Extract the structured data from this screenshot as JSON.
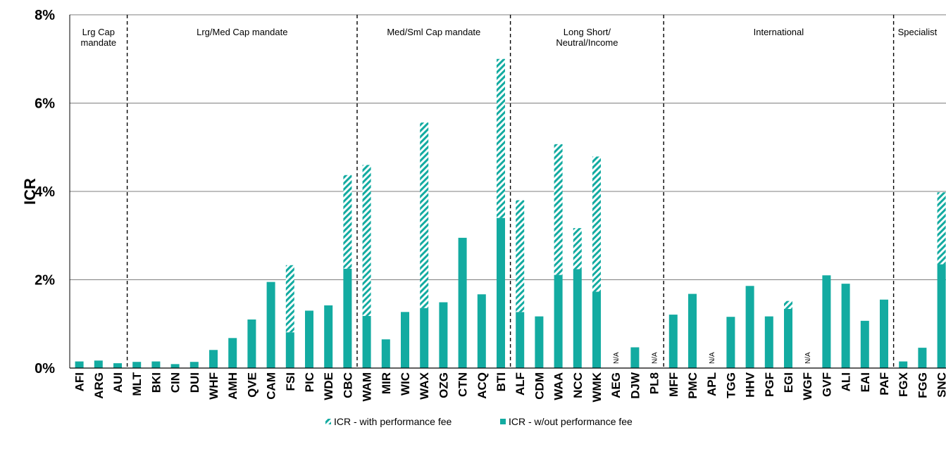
{
  "chart_data": {
    "type": "bar",
    "stacked": true,
    "ylabel": "ICR",
    "yticks": [
      "0%",
      "2%",
      "4%",
      "6%",
      "8%"
    ],
    "ylim": [
      0,
      8
    ],
    "grid": true,
    "legend_position": "bottom",
    "categories": [
      "AFI",
      "ARG",
      "AUI",
      "MLT",
      "BKI",
      "CIN",
      "DUI",
      "WHF",
      "AMH",
      "QVE",
      "CAM",
      "FSI",
      "PIC",
      "WDE",
      "CBC",
      "WAM",
      "MIR",
      "WIC",
      "WAX",
      "OZG",
      "CTN",
      "ACQ",
      "BTI",
      "ALF",
      "CDM",
      "WAA",
      "NCC",
      "WMK",
      "AEG",
      "DJW",
      "PL8",
      "MFF",
      "PMC",
      "APL",
      "TGG",
      "HHV",
      "PGF",
      "EGI",
      "WGF",
      "GVF",
      "ALI",
      "EAI",
      "PAF",
      "FGX",
      "FGG",
      "SNC"
    ],
    "series": [
      {
        "name": "ICR - w/out performance fee",
        "color": "#13ABA1",
        "pattern": "solid",
        "values": [
          0.15,
          0.17,
          0.11,
          0.14,
          0.15,
          0.09,
          0.14,
          0.41,
          0.68,
          1.1,
          1.95,
          0.81,
          1.3,
          1.42,
          2.25,
          1.18,
          0.65,
          1.27,
          1.36,
          1.49,
          2.95,
          1.67,
          3.4,
          1.27,
          1.17,
          2.11,
          2.24,
          1.73,
          0,
          0.47,
          0,
          1.21,
          1.68,
          0,
          1.16,
          1.86,
          1.17,
          1.34,
          0,
          2.1,
          1.91,
          1.07,
          1.55,
          0.15,
          0.46,
          2.35
        ]
      },
      {
        "name": "ICR - with performance fee",
        "color": "#13ABA1",
        "pattern": "hatched",
        "values": [
          0,
          0,
          0,
          0,
          0,
          0,
          0,
          0,
          0,
          0,
          0,
          1.52,
          0,
          0,
          2.12,
          3.42,
          0,
          0,
          4.2,
          0,
          0,
          0,
          3.6,
          2.53,
          0,
          2.96,
          0.93,
          3.06,
          0,
          0,
          0,
          0,
          0,
          0,
          0,
          0,
          0,
          0.18,
          0,
          0,
          0,
          0,
          0,
          0,
          0,
          1.63
        ]
      }
    ],
    "na_labels": [
      {
        "category": "AEG",
        "text": "N/A"
      },
      {
        "category": "PL8",
        "text": "N/A"
      },
      {
        "category": "APL",
        "text": "N/A"
      },
      {
        "category": "WGF",
        "text": "N/A"
      }
    ],
    "groups": [
      {
        "label_lines": [
          "Lrg Cap",
          "mandate"
        ],
        "start": 0,
        "end": 2
      },
      {
        "label_lines": [
          "Lrg/Med Cap mandate"
        ],
        "start": 3,
        "end": 14
      },
      {
        "label_lines": [
          "Med/Sml Cap mandate"
        ],
        "start": 15,
        "end": 22
      },
      {
        "label_lines": [
          "Long Short/",
          "Neutral/Income"
        ],
        "start": 23,
        "end": 30
      },
      {
        "label_lines": [
          "International"
        ],
        "start": 31,
        "end": 42
      },
      {
        "label_lines": [
          "Specialist"
        ],
        "start": 43,
        "end": 45
      }
    ]
  }
}
